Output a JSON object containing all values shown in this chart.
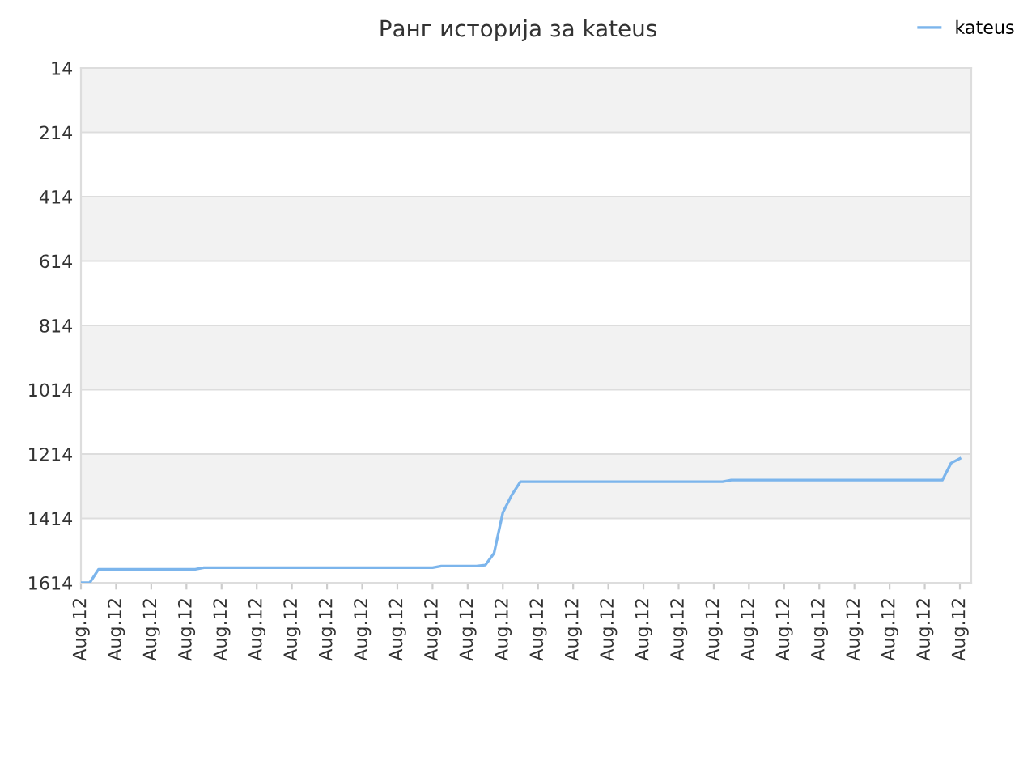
{
  "chart_data": {
    "type": "line",
    "title": "Ранг историја за kateus",
    "categories": [
      "Aug.12",
      null,
      null,
      null,
      "Aug.12",
      null,
      null,
      null,
      "Aug.12",
      null,
      null,
      null,
      "Aug.12",
      null,
      null,
      null,
      "Aug.12",
      null,
      null,
      null,
      "Aug.12",
      null,
      null,
      null,
      "Aug.12",
      null,
      null,
      null,
      "Aug.12",
      null,
      null,
      null,
      "Aug.12",
      null,
      null,
      null,
      "Aug.12",
      null,
      null,
      null,
      "Aug.12",
      null,
      null,
      null,
      "Aug.12",
      null,
      null,
      null,
      "Aug.12",
      null,
      null,
      null,
      "Aug.12",
      null,
      null,
      null,
      "Aug.12",
      null,
      null,
      null,
      "Aug.12",
      null,
      null,
      null,
      "Aug.12",
      null,
      null,
      null,
      "Aug.12",
      null,
      null,
      null,
      "Aug.12",
      null,
      null,
      null,
      "Aug.12",
      null,
      null,
      null,
      "Aug.12",
      null,
      null,
      null,
      "Aug.12",
      null,
      null,
      null,
      "Aug.12",
      null,
      null,
      null,
      "Aug.12",
      null,
      null,
      null,
      "Aug.12",
      null,
      null,
      null,
      "Aug.12"
    ],
    "series": [
      {
        "name": "kateus",
        "color": "#7cb5ec",
        "values": [
          1614,
          1614,
          1572,
          1572,
          1572,
          1572,
          1572,
          1572,
          1572,
          1572,
          1572,
          1572,
          1572,
          1572,
          1567,
          1567,
          1567,
          1567,
          1567,
          1567,
          1567,
          1567,
          1567,
          1567,
          1567,
          1567,
          1567,
          1567,
          1567,
          1567,
          1567,
          1567,
          1567,
          1567,
          1567,
          1567,
          1567,
          1567,
          1567,
          1567,
          1567,
          1562,
          1562,
          1562,
          1562,
          1562,
          1559,
          1522,
          1396,
          1342,
          1300,
          1300,
          1300,
          1300,
          1300,
          1300,
          1300,
          1300,
          1300,
          1300,
          1300,
          1300,
          1300,
          1300,
          1300,
          1300,
          1300,
          1300,
          1300,
          1300,
          1300,
          1300,
          1300,
          1300,
          1295,
          1295,
          1295,
          1295,
          1295,
          1295,
          1295,
          1295,
          1295,
          1295,
          1295,
          1295,
          1295,
          1295,
          1295,
          1295,
          1295,
          1295,
          1295,
          1295,
          1295,
          1295,
          1295,
          1295,
          1295,
          1242,
          1228
        ]
      }
    ],
    "ylim": [
      1614,
      14
    ],
    "yticks": [
      14,
      214,
      414,
      614,
      814,
      1014,
      1214,
      1414,
      1614
    ],
    "bands": [
      {
        "axis": "y",
        "from": 14,
        "to": 214,
        "color": "#f2f2f2"
      },
      {
        "axis": "y",
        "from": 414,
        "to": 614,
        "color": "#f2f2f2"
      },
      {
        "axis": "y",
        "from": 814,
        "to": 1014,
        "color": "#f2f2f2"
      },
      {
        "axis": "y",
        "from": 1214,
        "to": 1414,
        "color": "#f2f2f2"
      }
    ],
    "grid": "y",
    "legend": "top right",
    "marker": "none",
    "line_style": "solid"
  }
}
